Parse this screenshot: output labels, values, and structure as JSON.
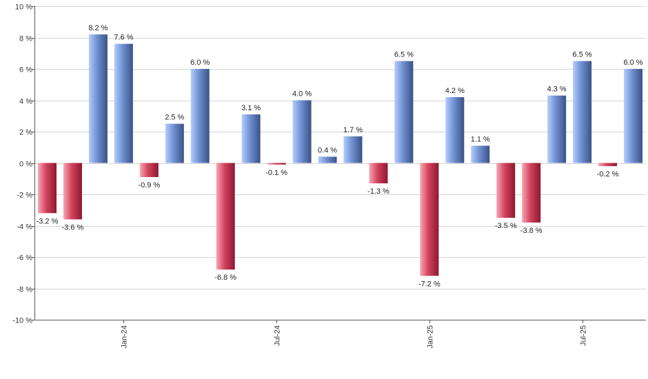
{
  "chart_data": {
    "type": "bar",
    "categories": [
      "2023-10",
      "2023-11",
      "2023-12",
      "2024-01",
      "2024-02",
      "2024-03",
      "2024-04",
      "2024-05",
      "2024-06",
      "2024-07",
      "2024-08",
      "2024-09",
      "2024-10",
      "2024-11",
      "2024-12",
      "2025-01",
      "2025-02",
      "2025-03",
      "2025-04",
      "2025-05",
      "2025-06",
      "2025-07",
      "2025-08",
      "2025-09"
    ],
    "values": [
      -3.2,
      -3.6,
      8.2,
      7.6,
      -0.9,
      2.5,
      6.0,
      -6.8,
      3.1,
      -0.1,
      4.0,
      0.4,
      1.7,
      -1.3,
      6.5,
      -7.2,
      4.2,
      1.1,
      -3.5,
      -3.8,
      4.3,
      6.5,
      -0.2,
      6.0
    ],
    "labels": [
      "-3.2 %",
      "-3.6 %",
      "8.2 %",
      "7.6 %",
      "-0.9 %",
      "2.5 %",
      "6.0 %",
      "-6.8 %",
      "3.1 %",
      "-0.1 %",
      "4.0 %",
      "0.4 %",
      "1.7 %",
      "-1.3 %",
      "6.5 %",
      "-7.2 %",
      "4.2 %",
      "1.1 %",
      "-3.5 %",
      "-3.8 %",
      "4.3 %",
      "6.5 %",
      "-0.2 %",
      "6.0 %"
    ],
    "ylim": [
      -10,
      10
    ],
    "yticks": [
      {
        "value": 10,
        "label": "10 %"
      },
      {
        "value": 8,
        "label": "8 %"
      },
      {
        "value": 6,
        "label": "6 %"
      },
      {
        "value": 4,
        "label": "4 %"
      },
      {
        "value": 2,
        "label": "2 %"
      },
      {
        "value": 0,
        "label": "0 %"
      },
      {
        "value": -2,
        "label": "-2 %"
      },
      {
        "value": -4,
        "label": "-4 %"
      },
      {
        "value": -6,
        "label": "-6 %"
      },
      {
        "value": -8,
        "label": "-8 %"
      },
      {
        "value": -10,
        "label": "-10 %"
      }
    ],
    "xticks": [
      {
        "category": "2024-01",
        "label": "Jan-24"
      },
      {
        "category": "2024-07",
        "label": "Jul-24"
      },
      {
        "category": "2025-01",
        "label": "Jan-25"
      },
      {
        "category": "2025-07",
        "label": "Jul-25"
      }
    ],
    "grid": true,
    "legend": false,
    "colors": {
      "positive_light": "#a9c5ff",
      "positive_dark": "#3f5a8f",
      "negative_light": "#f29aa6",
      "negative_dark": "#9c1d34",
      "grid": "#d4d4d4"
    }
  }
}
